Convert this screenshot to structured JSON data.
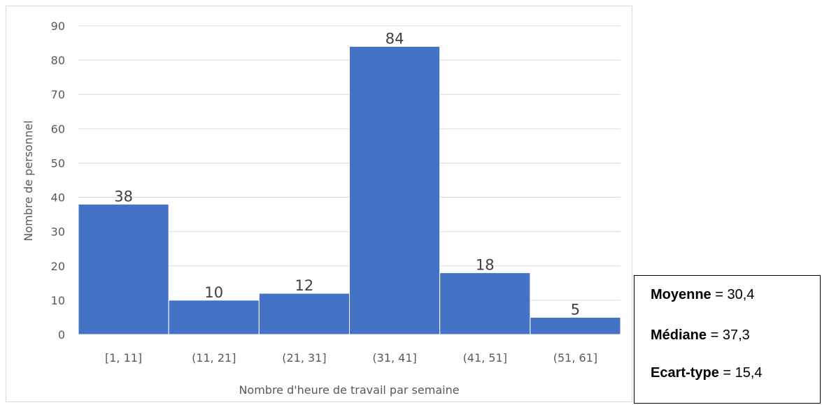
{
  "chart_data": {
    "type": "bar",
    "categories": [
      "[1, 11]",
      "(11, 21]",
      "(21, 31]",
      "(31, 41]",
      "(41, 51]",
      "(51, 61]"
    ],
    "values": [
      38,
      10,
      12,
      84,
      18,
      5
    ],
    "data_labels": [
      "38",
      "10",
      "12",
      "84",
      "18",
      "5"
    ],
    "xlabel": "Nombre d'heure de travail par semaine",
    "ylabel": "Nombre de personnel",
    "ylim": [
      0,
      90
    ],
    "yticks": [
      "0",
      "10",
      "20",
      "30",
      "40",
      "50",
      "60",
      "70",
      "80",
      "90"
    ],
    "bar_color": "#4472c4",
    "grid": true,
    "legend": "none"
  },
  "stats": {
    "mean_label": "Moyenne",
    "mean_value": "= 30,4",
    "median_label": "Médiane",
    "median_value": "= 37,3",
    "std_label": "Ecart-type",
    "std_value": "= 15,4"
  }
}
